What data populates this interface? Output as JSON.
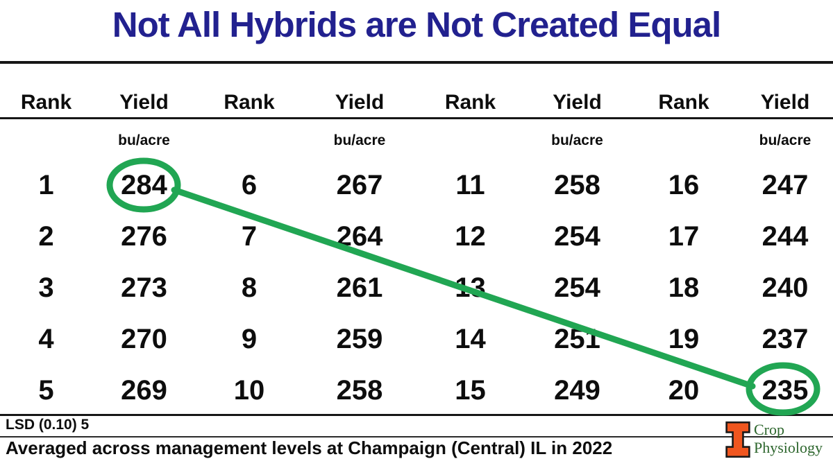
{
  "title": "Not All Hybrids are Not Created Equal",
  "table": {
    "headers": [
      "Rank",
      "Yield",
      "Rank",
      "Yield",
      "Rank",
      "Yield",
      "Rank",
      "Yield"
    ],
    "unit_label": "bu/acre",
    "rows": [
      [
        "1",
        "284",
        "6",
        "267",
        "11",
        "258",
        "16",
        "247"
      ],
      [
        "2",
        "276",
        "7",
        "264",
        "12",
        "254",
        "17",
        "244"
      ],
      [
        "3",
        "273",
        "8",
        "261",
        "13",
        "254",
        "18",
        "240"
      ],
      [
        "4",
        "270",
        "9",
        "259",
        "14",
        "251",
        "19",
        "237"
      ],
      [
        "5",
        "269",
        "10",
        "258",
        "15",
        "249",
        "20",
        "235"
      ]
    ]
  },
  "annotation": {
    "circled_values": [
      "284",
      "235"
    ],
    "description": "green circles around top yield 284 and bottom yield 235 joined by a green line"
  },
  "footer": {
    "lsd_label": "LSD (0.10) 5",
    "caption": "Averaged across management levels at Champaign (Central) IL in 2022"
  },
  "logo": {
    "letter": "I",
    "line1": "Crop",
    "line2": "Physiology"
  },
  "colors": {
    "title_navy": "#22218f",
    "highlight_green": "#21a653",
    "logo_orange": "#f0561f",
    "logo_green": "#2d662d"
  }
}
